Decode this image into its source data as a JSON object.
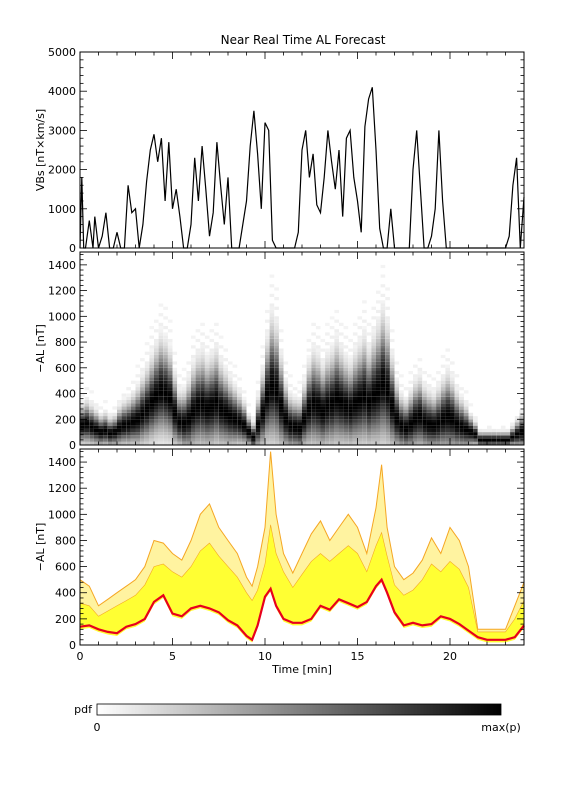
{
  "figure_title": "Near Real Time AL Forecast",
  "colorbar": {
    "label": "pdf",
    "min_label": "0",
    "max_label": "max(p)"
  },
  "chart_data": [
    {
      "type": "line",
      "panel": "top",
      "title": "Near Real Time AL Forecast",
      "ylabel": "VBs [nT×km/s]",
      "xlim": [
        0,
        24
      ],
      "ylim": [
        0,
        5000
      ],
      "yticks": [
        0,
        1000,
        2000,
        3000,
        4000,
        5000
      ],
      "series": [
        {
          "color": "#000000",
          "x": [
            0,
            0.1,
            0.2,
            0.3,
            0.5,
            0.7,
            0.8,
            1.0,
            1.2,
            1.4,
            1.6,
            1.8,
            2.0,
            2.2,
            2.4,
            2.6,
            2.8,
            3.0,
            3.2,
            3.4,
            3.6,
            3.8,
            4.0,
            4.2,
            4.4,
            4.6,
            4.8,
            5.0,
            5.2,
            5.4,
            5.6,
            5.8,
            6.0,
            6.2,
            6.4,
            6.6,
            6.8,
            7.0,
            7.2,
            7.4,
            7.6,
            7.8,
            8.0,
            8.2,
            8.4,
            8.6,
            8.8,
            9.0,
            9.2,
            9.4,
            9.6,
            9.8,
            10.0,
            10.2,
            10.4,
            10.6,
            10.8,
            11.0,
            11.2,
            11.4,
            11.6,
            11.8,
            12.0,
            12.2,
            12.4,
            12.6,
            12.8,
            13.0,
            13.2,
            13.4,
            13.6,
            13.8,
            14.0,
            14.2,
            14.4,
            14.6,
            14.8,
            15.0,
            15.2,
            15.4,
            15.6,
            15.8,
            16.0,
            16.2,
            16.4,
            16.6,
            16.8,
            17.0,
            17.2,
            17.4,
            17.6,
            17.8,
            18.0,
            18.2,
            18.4,
            18.6,
            18.8,
            19.0,
            19.2,
            19.4,
            19.6,
            19.8,
            20.0,
            20.2,
            20.4,
            20.6,
            20.8,
            21.0,
            21.5,
            22.0,
            22.5,
            23.0,
            23.2,
            23.4,
            23.6,
            23.8,
            24.0
          ],
          "y": [
            0,
            1800,
            0,
            0,
            700,
            0,
            800,
            0,
            300,
            900,
            0,
            0,
            400,
            0,
            0,
            1600,
            900,
            1000,
            0,
            600,
            1700,
            2500,
            2900,
            2200,
            2800,
            1200,
            2700,
            1000,
            1500,
            800,
            0,
            0,
            600,
            2300,
            1200,
            2600,
            1500,
            300,
            900,
            2700,
            1600,
            600,
            1800,
            0,
            0,
            0,
            600,
            1200,
            2600,
            3500,
            2400,
            1000,
            3200,
            3000,
            200,
            0,
            0,
            0,
            0,
            0,
            0,
            400,
            2500,
            3000,
            1800,
            2400,
            1100,
            900,
            1800,
            3000,
            2200,
            1500,
            2500,
            800,
            2800,
            3000,
            1800,
            1200,
            400,
            3100,
            3800,
            4100,
            2500,
            500,
            0,
            0,
            1000,
            0,
            0,
            0,
            0,
            0,
            2000,
            3000,
            1500,
            0,
            0,
            300,
            1000,
            3000,
            1200,
            0,
            0,
            0,
            0,
            0,
            0,
            0,
            0,
            0,
            0,
            0,
            300,
            1600,
            2300,
            0,
            1300
          ]
        }
      ]
    },
    {
      "type": "heatmap",
      "panel": "middle",
      "ylabel": "−AL [nT]",
      "xlim": [
        0,
        24
      ],
      "ylim": [
        0,
        1500
      ],
      "yticks": [
        0,
        200,
        400,
        600,
        800,
        1000,
        1200,
        1400
      ],
      "colorscale": [
        "#ffffff",
        "#000000"
      ],
      "x": [
        0,
        0.25,
        0.5,
        0.75,
        1,
        1.25,
        1.5,
        1.75,
        2,
        2.25,
        2.5,
        2.75,
        3,
        3.25,
        3.5,
        3.75,
        4,
        4.25,
        4.5,
        4.75,
        5,
        5.25,
        5.5,
        5.75,
        6,
        6.25,
        6.5,
        6.75,
        7,
        7.25,
        7.5,
        7.75,
        8,
        8.25,
        8.5,
        8.75,
        9,
        9.25,
        9.5,
        9.75,
        10,
        10.25,
        10.5,
        10.75,
        11,
        11.25,
        11.5,
        11.75,
        12,
        12.25,
        12.5,
        12.75,
        13,
        13.25,
        13.5,
        13.75,
        14,
        14.25,
        14.5,
        14.75,
        15,
        15.25,
        15.5,
        15.75,
        16,
        16.25,
        16.5,
        16.75,
        17,
        17.25,
        17.5,
        17.75,
        18,
        18.25,
        18.5,
        18.75,
        19,
        19.25,
        19.5,
        19.75,
        20,
        20.25,
        20.5,
        20.75,
        21,
        21.25,
        21.5,
        21.75,
        22,
        22.25,
        22.5,
        22.75,
        23,
        23.25,
        23.5,
        23.75
      ],
      "center": [
        150,
        160,
        140,
        120,
        100,
        110,
        90,
        100,
        130,
        150,
        160,
        180,
        200,
        240,
        280,
        330,
        380,
        420,
        400,
        360,
        250,
        180,
        170,
        200,
        260,
        300,
        310,
        280,
        300,
        330,
        280,
        250,
        220,
        200,
        180,
        150,
        100,
        60,
        150,
        250,
        380,
        460,
        420,
        300,
        200,
        150,
        140,
        130,
        200,
        280,
        320,
        300,
        260,
        300,
        320,
        360,
        330,
        300,
        280,
        320,
        350,
        380,
        330,
        380,
        420,
        480,
        420,
        300,
        200,
        150,
        130,
        160,
        200,
        220,
        180,
        160,
        150,
        170,
        200,
        220,
        200,
        160,
        140,
        120,
        100,
        80,
        40,
        40,
        40,
        40,
        40,
        40,
        40,
        60,
        80,
        100,
        110,
        140
      ],
      "spread": [
        200,
        220,
        200,
        180,
        160,
        170,
        150,
        160,
        200,
        220,
        240,
        260,
        300,
        340,
        380,
        420,
        460,
        500,
        480,
        440,
        360,
        280,
        300,
        360,
        420,
        460,
        480,
        440,
        460,
        480,
        420,
        380,
        340,
        300,
        260,
        220,
        160,
        140,
        260,
        380,
        520,
        640,
        600,
        460,
        340,
        280,
        260,
        260,
        320,
        420,
        480,
        460,
        420,
        460,
        480,
        520,
        480,
        440,
        420,
        460,
        500,
        540,
        480,
        540,
        600,
        660,
        600,
        460,
        340,
        280,
        260,
        300,
        340,
        360,
        320,
        300,
        280,
        320,
        360,
        400,
        360,
        300,
        260,
        220,
        160,
        120,
        80,
        80,
        80,
        80,
        80,
        80,
        80,
        100,
        140,
        180,
        220,
        260
      ]
    },
    {
      "type": "area",
      "panel": "bottom",
      "ylabel": "−AL [nT]",
      "xlabel": "Time [min]",
      "xlim": [
        0,
        24
      ],
      "ylim": [
        0,
        1500
      ],
      "yticks": [
        0,
        200,
        400,
        600,
        800,
        1000,
        1200,
        1400
      ],
      "xticks": [
        0,
        5,
        10,
        15,
        20
      ],
      "x": [
        0,
        0.5,
        1,
        1.5,
        2,
        2.5,
        3,
        3.5,
        4,
        4.5,
        5,
        5.5,
        6,
        6.5,
        7,
        7.5,
        8,
        8.5,
        9,
        9.3,
        9.6,
        10,
        10.3,
        10.6,
        11,
        11.5,
        12,
        12.5,
        13,
        13.5,
        14,
        14.5,
        15,
        15.5,
        16,
        16.3,
        16.6,
        17,
        17.5,
        18,
        18.5,
        19,
        19.5,
        20,
        20.5,
        21,
        21.5,
        22,
        22.5,
        23,
        23.5,
        24
      ],
      "series": [
        {
          "name": "",
          "role": "upper",
          "color": "#f5a623",
          "values": [
            500,
            450,
            300,
            350,
            400,
            450,
            500,
            600,
            800,
            780,
            700,
            650,
            800,
            1000,
            1080,
            900,
            800,
            700,
            520,
            450,
            600,
            900,
            1480,
            1000,
            700,
            550,
            700,
            850,
            950,
            800,
            900,
            1000,
            900,
            700,
            1050,
            1380,
            900,
            600,
            500,
            550,
            650,
            820,
            700,
            900,
            800,
            600,
            120,
            120,
            120,
            120,
            300,
            480
          ]
        },
        {
          "name": "",
          "role": "inner-upper",
          "color": "#ffff33",
          "values": [
            320,
            300,
            220,
            260,
            300,
            340,
            380,
            460,
            600,
            620,
            560,
            520,
            600,
            720,
            780,
            680,
            600,
            520,
            400,
            340,
            420,
            620,
            920,
            700,
            560,
            440,
            540,
            640,
            700,
            640,
            700,
            760,
            700,
            560,
            760,
            860,
            680,
            460,
            380,
            420,
            500,
            620,
            560,
            640,
            580,
            440,
            100,
            100,
            100,
            100,
            200,
            340
          ]
        },
        {
          "name": "",
          "role": "median",
          "color": "#e8001c",
          "values": [
            140,
            150,
            120,
            100,
            90,
            140,
            160,
            200,
            330,
            380,
            240,
            220,
            280,
            300,
            280,
            250,
            190,
            150,
            70,
            40,
            150,
            370,
            430,
            300,
            200,
            170,
            170,
            200,
            300,
            270,
            350,
            320,
            290,
            330,
            450,
            500,
            400,
            250,
            150,
            170,
            150,
            160,
            220,
            200,
            160,
            110,
            60,
            40,
            40,
            40,
            60,
            150
          ]
        }
      ]
    }
  ]
}
